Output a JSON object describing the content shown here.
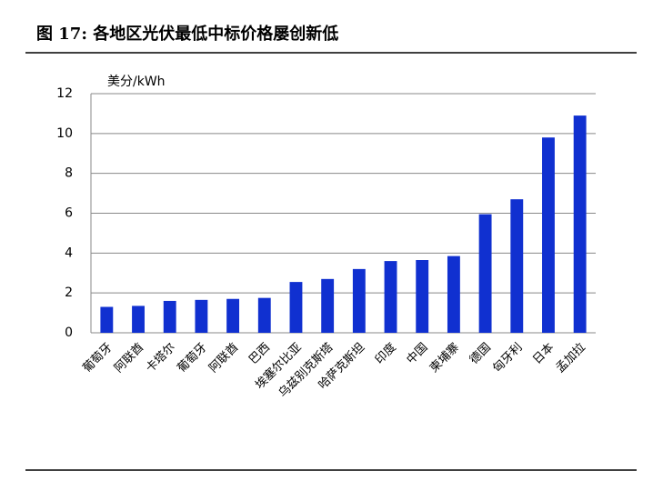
{
  "chart_data": {
    "type": "bar",
    "title": "图 17: 各地区光伏最低中标价格屡创新低",
    "y_label": "美分/kWh",
    "categories": [
      "葡萄牙",
      "阿联酋",
      "卡塔尔",
      "葡萄牙",
      "阿联酋",
      "巴西",
      "埃塞尔比亚",
      "乌兹别克斯塔",
      "哈萨克斯坦",
      "印度",
      "中国",
      "柬埔寨",
      "德国",
      "匈牙利",
      "日本",
      "孟加拉"
    ],
    "values": [
      1.3,
      1.35,
      1.6,
      1.65,
      1.7,
      1.75,
      2.55,
      2.7,
      3.2,
      3.6,
      3.65,
      3.85,
      5.95,
      6.7,
      9.8,
      10.9
    ],
    "color": "#1030d0",
    "ylim": [
      0,
      12
    ],
    "yticks": [
      0,
      2,
      4,
      6,
      8,
      10,
      12
    ],
    "grid": true
  }
}
